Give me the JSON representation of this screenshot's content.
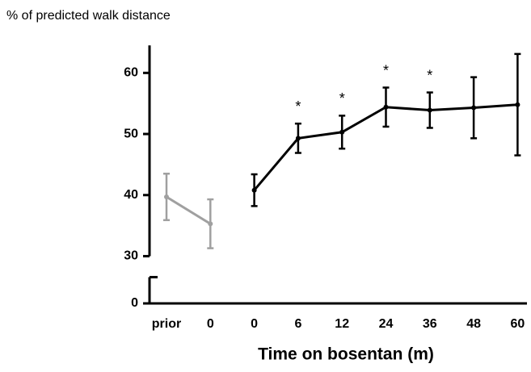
{
  "chart_data": {
    "type": "line",
    "ylabel": "% of predicted walk distance",
    "xlabel": "Time on bosentan (m)",
    "categories": [
      "prior",
      "0",
      "0",
      "6",
      "12",
      "24",
      "36",
      "48",
      "60"
    ],
    "series": [
      {
        "color": "#a0a0a0",
        "values": [
          39.7,
          35.3,
          null,
          null,
          null,
          null,
          null,
          null,
          null
        ],
        "errors": [
          3.8,
          4.0,
          null,
          null,
          null,
          null,
          null,
          null,
          null
        ]
      },
      {
        "color": "#000000",
        "values": [
          null,
          null,
          40.8,
          49.3,
          50.3,
          54.4,
          53.9,
          54.3,
          54.8
        ],
        "errors": [
          null,
          null,
          2.6,
          2.4,
          2.7,
          3.2,
          2.9,
          5.0,
          8.3
        ]
      }
    ],
    "annotations": [
      null,
      null,
      null,
      "*",
      "*",
      "*",
      "*",
      null,
      null
    ],
    "ylim": [
      0,
      64.5
    ],
    "ybreak": [
      4.3,
      30
    ],
    "yticks": [
      0,
      30,
      40,
      50,
      60
    ]
  }
}
